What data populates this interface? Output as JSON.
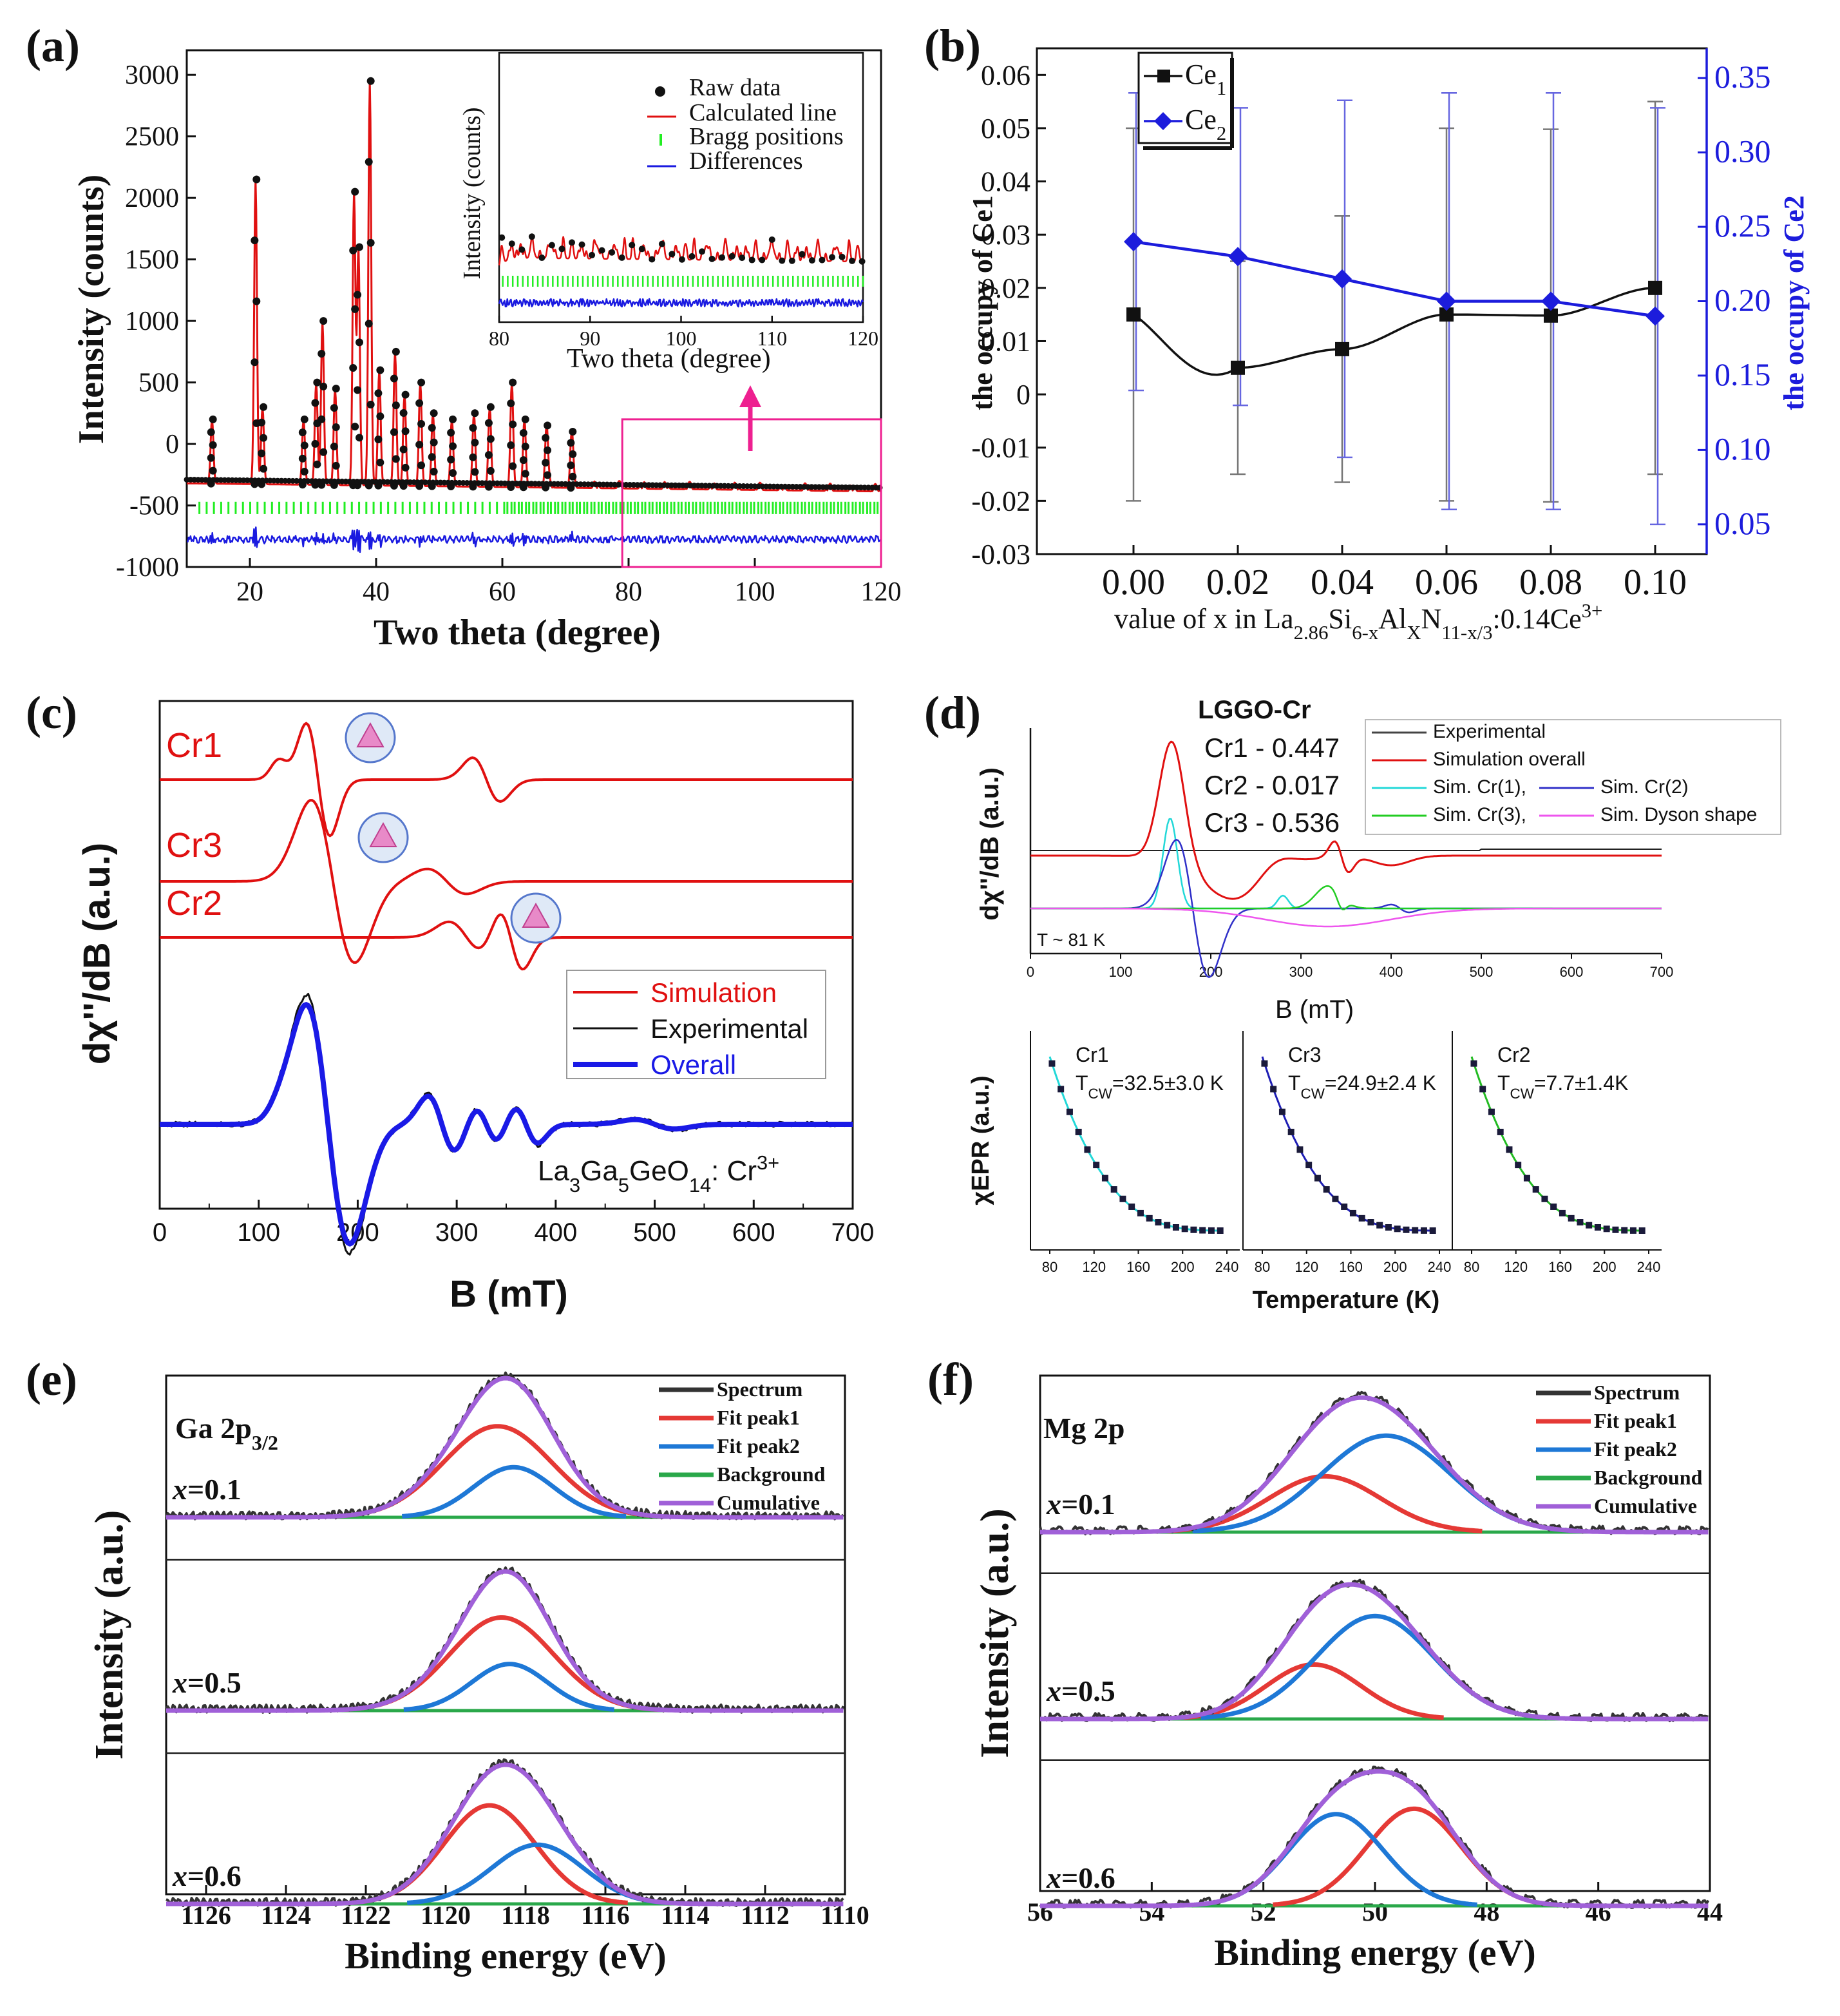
{
  "chart_data": [
    {
      "panel": "(a)",
      "type": "scatter",
      "xlabel": "Two theta (degree)",
      "ylabel": "Intensity (counts)",
      "xlim": [
        10,
        120
      ],
      "ylim": [
        -1000,
        3200
      ],
      "xticks": [
        "20",
        "40",
        "60",
        "80",
        "100",
        "120"
      ],
      "yticks": [
        "-1000",
        "-500",
        "0",
        "500",
        "1000",
        "1500",
        "2000",
        "2500",
        "3000"
      ],
      "peaks": [
        {
          "x": 14,
          "y": 200
        },
        {
          "x": 20.9,
          "y": 2150
        },
        {
          "x": 22,
          "y": 300
        },
        {
          "x": 28.5,
          "y": 200
        },
        {
          "x": 30.5,
          "y": 500
        },
        {
          "x": 31.5,
          "y": 1000
        },
        {
          "x": 33.5,
          "y": 450
        },
        {
          "x": 36.5,
          "y": 2050
        },
        {
          "x": 37.2,
          "y": 1600
        },
        {
          "x": 39,
          "y": 2950
        },
        {
          "x": 40.5,
          "y": 600
        },
        {
          "x": 43,
          "y": 750
        },
        {
          "x": 44.5,
          "y": 400
        },
        {
          "x": 47,
          "y": 500
        },
        {
          "x": 49,
          "y": 250
        },
        {
          "x": 52,
          "y": 200
        },
        {
          "x": 55.5,
          "y": 250
        },
        {
          "x": 58,
          "y": 300
        },
        {
          "x": 61.5,
          "y": 500
        },
        {
          "x": 63.5,
          "y": 200
        },
        {
          "x": 67,
          "y": 150
        },
        {
          "x": 71,
          "y": 100
        }
      ],
      "inset": {
        "xlabel": "Two theta (degree)",
        "ylabel": "Intensity (counts)",
        "xlim": [
          80,
          120
        ],
        "xticks": [
          "80",
          "90",
          "100",
          "110",
          "120"
        ],
        "legend": [
          "Raw data",
          "Calculated line",
          "Bragg positions",
          "Differences"
        ]
      }
    },
    {
      "panel": "(b)",
      "type": "line",
      "xlabel_prefix": "value of x in La",
      "xlabel_formula": [
        "2.86",
        "Si",
        "6-x",
        "Al",
        "X",
        "N",
        "11-x/3",
        ":0.14Ce",
        "3+"
      ],
      "ylabel_left": "the occupy of Ce1",
      "ylabel_right": "the occupy of Ce2",
      "x": [
        0.0,
        0.02,
        0.04,
        0.06,
        0.08,
        0.1
      ],
      "xticks": [
        "0.00",
        "0.02",
        "0.04",
        "0.06",
        "0.08",
        "0.10"
      ],
      "ylim_left": [
        -0.03,
        0.065
      ],
      "yticks_left": [
        "-0.03",
        "-0.02",
        "-0.01",
        "0",
        "0.01",
        "0.02",
        "0.03",
        "0.04",
        "0.05",
        "0.06"
      ],
      "ylim_right": [
        0.03,
        0.37
      ],
      "yticks_right": [
        "0.05",
        "0.10",
        "0.15",
        "0.20",
        "0.25",
        "0.30",
        "0.35"
      ],
      "series": [
        {
          "name": "Ce1",
          "legend_sub": "1",
          "values": [
            0.015,
            0.005,
            0.0085,
            0.015,
            0.0148,
            0.02
          ],
          "errors": [
            0.035,
            0.02,
            0.025,
            0.035,
            0.035,
            0.035
          ],
          "color": "#111111"
        },
        {
          "name": "Ce2",
          "legend_sub": "2",
          "values": [
            0.24,
            0.23,
            0.215,
            0.2,
            0.2,
            0.19
          ],
          "errors": [
            0.1,
            0.1,
            0.12,
            0.14,
            0.14,
            0.14
          ],
          "color": "#1c1cdc"
        }
      ]
    },
    {
      "panel": "(c)",
      "type": "line",
      "xlabel": "B (mT)",
      "ylabel": "dχ''/dB (a.u.)",
      "xlim": [
        0,
        700
      ],
      "xticks": [
        "0",
        "100",
        "200",
        "300",
        "400",
        "500",
        "600",
        "700"
      ],
      "traces": [
        "Cr1",
        "Cr3",
        "Cr2"
      ],
      "legend": [
        "Simulation",
        "Experimental",
        "Overall"
      ],
      "annotation": "La3Ga5GeO14: Cr3+",
      "annotation_parts": [
        "La",
        "3",
        "Ga",
        "5",
        "GeO",
        "14",
        ": Cr",
        "3+"
      ]
    },
    {
      "panel": "(d)",
      "type": "line",
      "title": "LGGO-Cr",
      "xlabel": "B (mT)",
      "ylabel": "dχ''/dB (a.u.)",
      "xlim": [
        0,
        700
      ],
      "xticks": [
        "0",
        "100",
        "200",
        "300",
        "400",
        "500",
        "600",
        "700"
      ],
      "fractions": [
        "Cr1 - 0.447",
        "Cr2 - 0.017",
        "Cr3 - 0.536"
      ],
      "legend": [
        "Experimental",
        "Simulation overall",
        "Sim. Cr(1),",
        "Sim. Cr(2)",
        "Sim. Cr(3),",
        "Sim. Dyson shape"
      ],
      "temperature_note": "T ~ 81 K",
      "subplots": [
        {
          "name": "Cr1",
          "tcw": "=32.5±3.0 K",
          "color": "#22d8d8"
        },
        {
          "name": "Cr3",
          "tcw": "=24.9±2.4 K",
          "color": "#1e1eb4"
        },
        {
          "name": "Cr2",
          "tcw": "=7.7±1.4K",
          "color": "#22bb22"
        }
      ],
      "sub_xticks": [
        "80",
        "120",
        "160",
        "200",
        "240"
      ],
      "sub_xlabel": "Temperature (K)",
      "sub_ylabel": "χEPR (a.u.)"
    },
    {
      "panel": "(e)",
      "type": "line",
      "title_parts": [
        "Ga 2p",
        "3/2"
      ],
      "xlabel": "Binding energy (eV)",
      "ylabel": "Intensity (a.u.)",
      "xlim": [
        1127,
        1110
      ],
      "xticks": [
        "1126",
        "1124",
        "1122",
        "1120",
        "1118",
        "1116",
        "1114",
        "1112",
        "1110"
      ],
      "legend": [
        "Spectrum",
        "Fit peak1",
        "Fit peak2",
        "Background",
        "Cumulative"
      ],
      "rows": [
        {
          "label": "x=0.1",
          "p1": {
            "c": 1118.7,
            "h": 1.0,
            "w": 1.35
          },
          "p2": {
            "c": 1118.3,
            "h": 0.55,
            "w": 1.0
          }
        },
        {
          "label": "x=0.5",
          "p1": {
            "c": 1118.6,
            "h": 1.0,
            "w": 1.3
          },
          "p2": {
            "c": 1118.4,
            "h": 0.5,
            "w": 0.95
          }
        },
        {
          "label": "x=0.6",
          "p1": {
            "c": 1118.9,
            "h": 1.0,
            "w": 1.15
          },
          "p2": {
            "c": 1117.7,
            "h": 0.6,
            "w": 1.15
          }
        }
      ]
    },
    {
      "panel": "(f)",
      "type": "line",
      "title": "Mg 2p",
      "xlabel": "Binding energy (eV)",
      "ylabel": "Intensity (a.u.)",
      "xlim": [
        56,
        44
      ],
      "xticks": [
        "56",
        "54",
        "52",
        "50",
        "48",
        "46",
        "44"
      ],
      "legend": [
        "Spectrum",
        "Fit peak1",
        "Fit peak2",
        "Background",
        "Cumulative"
      ],
      "rows": [
        {
          "label": "x=0.1",
          "p1": {
            "c": 50.9,
            "h": 0.55,
            "w": 1.0
          },
          "p2": {
            "c": 49.8,
            "h": 0.95,
            "w": 1.15
          }
        },
        {
          "label": "x=0.5",
          "p1": {
            "c": 51.1,
            "h": 0.45,
            "w": 0.85
          },
          "p2": {
            "c": 50.0,
            "h": 0.85,
            "w": 1.05
          }
        },
        {
          "label": "x=0.6",
          "p1": {
            "c": 49.3,
            "h": 0.9,
            "w": 0.85
          },
          "p2": {
            "c": 50.7,
            "h": 0.85,
            "w": 0.85
          }
        }
      ]
    }
  ]
}
